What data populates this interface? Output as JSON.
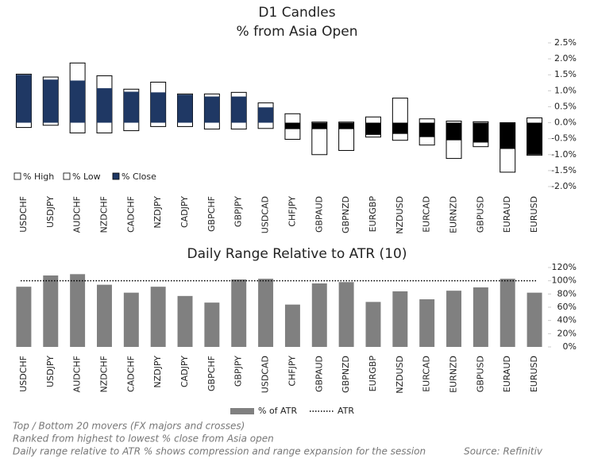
{
  "chart_data": [
    {
      "type": "candle",
      "title": "D1 Candles",
      "subtitle": "% from Asia Open",
      "categories": [
        "USDCHF",
        "USDJPY",
        "AUDCHF",
        "NZDCHF",
        "CADCHF",
        "NZDJPY",
        "CADJPY",
        "GBPCHF",
        "GBPJPY",
        "USDCAD",
        "CHFJPY",
        "GBPAUD",
        "GBPNZD",
        "EURGBP",
        "NZDUSD",
        "EURCAD",
        "EURNZD",
        "GBPUSD",
        "EURAUD",
        "EURUSD"
      ],
      "series": [
        {
          "name": "% High",
          "color": "#ffffff",
          "values": [
            1.52,
            1.43,
            1.87,
            1.47,
            1.05,
            1.27,
            0.9,
            0.9,
            0.95,
            0.62,
            0.28,
            0.02,
            0.02,
            0.18,
            0.77,
            0.12,
            0.05,
            0.03,
            0.0,
            0.15
          ]
        },
        {
          "name": "% Low",
          "color": "#ffffff",
          "values": [
            -0.15,
            -0.08,
            -0.32,
            -0.32,
            -0.25,
            -0.12,
            -0.12,
            -0.2,
            -0.2,
            -0.18,
            -0.52,
            -1.0,
            -0.87,
            -0.45,
            -0.55,
            -0.7,
            -1.12,
            -0.75,
            -1.55,
            -1.02
          ]
        },
        {
          "name": "% Close",
          "color": "#1f3864",
          "negative_color": "#000000",
          "values": [
            1.5,
            1.35,
            1.32,
            1.08,
            0.97,
            0.95,
            0.88,
            0.82,
            0.82,
            0.48,
            -0.2,
            -0.2,
            -0.2,
            -0.38,
            -0.35,
            -0.45,
            -0.55,
            -0.62,
            -0.82,
            -1.0
          ]
        }
      ],
      "ylim": [
        -2.0,
        2.5
      ],
      "yticks": [
        {
          "value": 2.5,
          "label": "2.5%"
        },
        {
          "value": 2.0,
          "label": "2.0%"
        },
        {
          "value": 1.5,
          "label": "1.5%"
        },
        {
          "value": 1.0,
          "label": "1.0%"
        },
        {
          "value": 0.5,
          "label": "0.5%"
        },
        {
          "value": 0.0,
          "label": "0.0%"
        },
        {
          "value": -0.5,
          "label": "-0.5%"
        },
        {
          "value": -1.0,
          "label": "-1.0%"
        },
        {
          "value": -1.5,
          "label": "-1.5%"
        },
        {
          "value": -2.0,
          "label": "-2.0%"
        }
      ]
    },
    {
      "type": "bar",
      "title": "Daily Range Relative to ATR (10)",
      "categories": [
        "USDCHF",
        "USDJPY",
        "AUDCHF",
        "NZDCHF",
        "CADCHF",
        "NZDJPY",
        "CADJPY",
        "GBPCHF",
        "GBPJPY",
        "USDCAD",
        "CHFJPY",
        "GBPAUD",
        "GBPNZD",
        "EURGBP",
        "NZDUSD",
        "EURCAD",
        "EURNZD",
        "GBPUSD",
        "EURAUD",
        "EURUSD"
      ],
      "series": [
        {
          "name": "% of ATR",
          "color": "#808080",
          "values": [
            91,
            108,
            110,
            94,
            82,
            91,
            77,
            67,
            102,
            103,
            64,
            96,
            98,
            68,
            84,
            72,
            85,
            90,
            103,
            82
          ]
        }
      ],
      "reference": {
        "name": "ATR",
        "value": 100
      },
      "ylim": [
        0,
        120
      ],
      "yticks": [
        {
          "value": 0,
          "label": "0%"
        },
        {
          "value": 20,
          "label": "20%"
        },
        {
          "value": 40,
          "label": "40%"
        },
        {
          "value": 60,
          "label": "60%"
        },
        {
          "value": 80,
          "label": "80%"
        },
        {
          "value": 100,
          "label": "100%"
        },
        {
          "value": 120,
          "label": "120%"
        }
      ]
    }
  ],
  "notes": [
    "Top / Bottom 20 movers (FX majors and crosses)",
    "Ranked from highest to lowest % close from Asia open",
    "Daily range relative to ATR % shows compression and range expansion for the session"
  ],
  "source": "Source: Refinitiv"
}
